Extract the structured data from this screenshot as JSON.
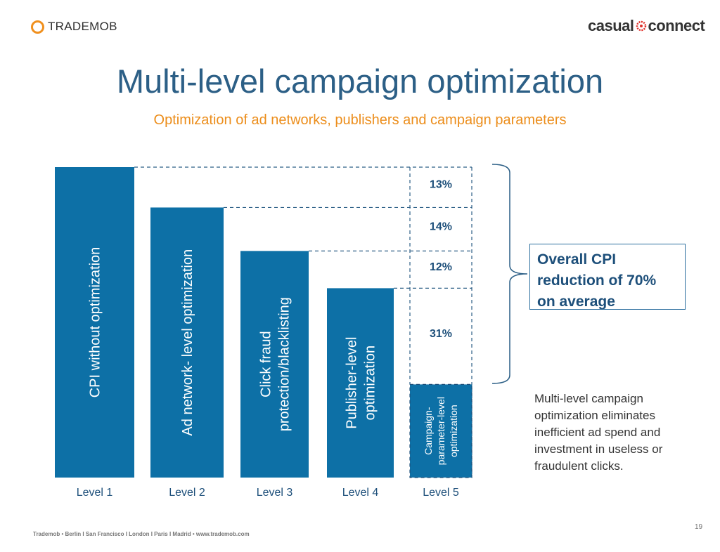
{
  "header": {
    "left_logo_text": "TRADEMOB",
    "right_logo_left": "casual",
    "right_logo_right": "connect",
    "title": "Multi-level campaign optimization",
    "subtitle": "Optimization of ad networks, publishers and campaign parameters"
  },
  "colors": {
    "bar": "#0d70a6",
    "accent": "#ec8e1c",
    "title": "#2c5f86"
  },
  "chart_data": {
    "type": "bar",
    "categories": [
      "Level 1",
      "Level 2",
      "Level 3",
      "Level 4",
      "Level 5"
    ],
    "values": [
      100,
      87,
      73,
      61,
      30
    ],
    "bar_labels": [
      [
        "CPI  without optimization"
      ],
      [
        "Ad network- level optimization"
      ],
      [
        "Click fraud",
        "protection/blacklisting"
      ],
      [
        "Publisher-level",
        "optimization"
      ],
      [
        "Campaign-",
        "parameter-level",
        "optimization"
      ]
    ],
    "reductions": [
      "13%",
      "14%",
      "12%",
      "31%"
    ],
    "ylim": [
      0,
      100
    ],
    "grid": false
  },
  "callout": {
    "text": "Overall CPI\nreduction of 70%\non average"
  },
  "note": {
    "text": "Multi-level campaign\noptimization eliminates\ninefficient ad spend and\ninvestment in useless or\nfraudulent clicks."
  },
  "footer": {
    "text": "Trademob • Berlin I San Francisco I London I Paris I Madrid • www.trademob.com",
    "page": "19"
  }
}
